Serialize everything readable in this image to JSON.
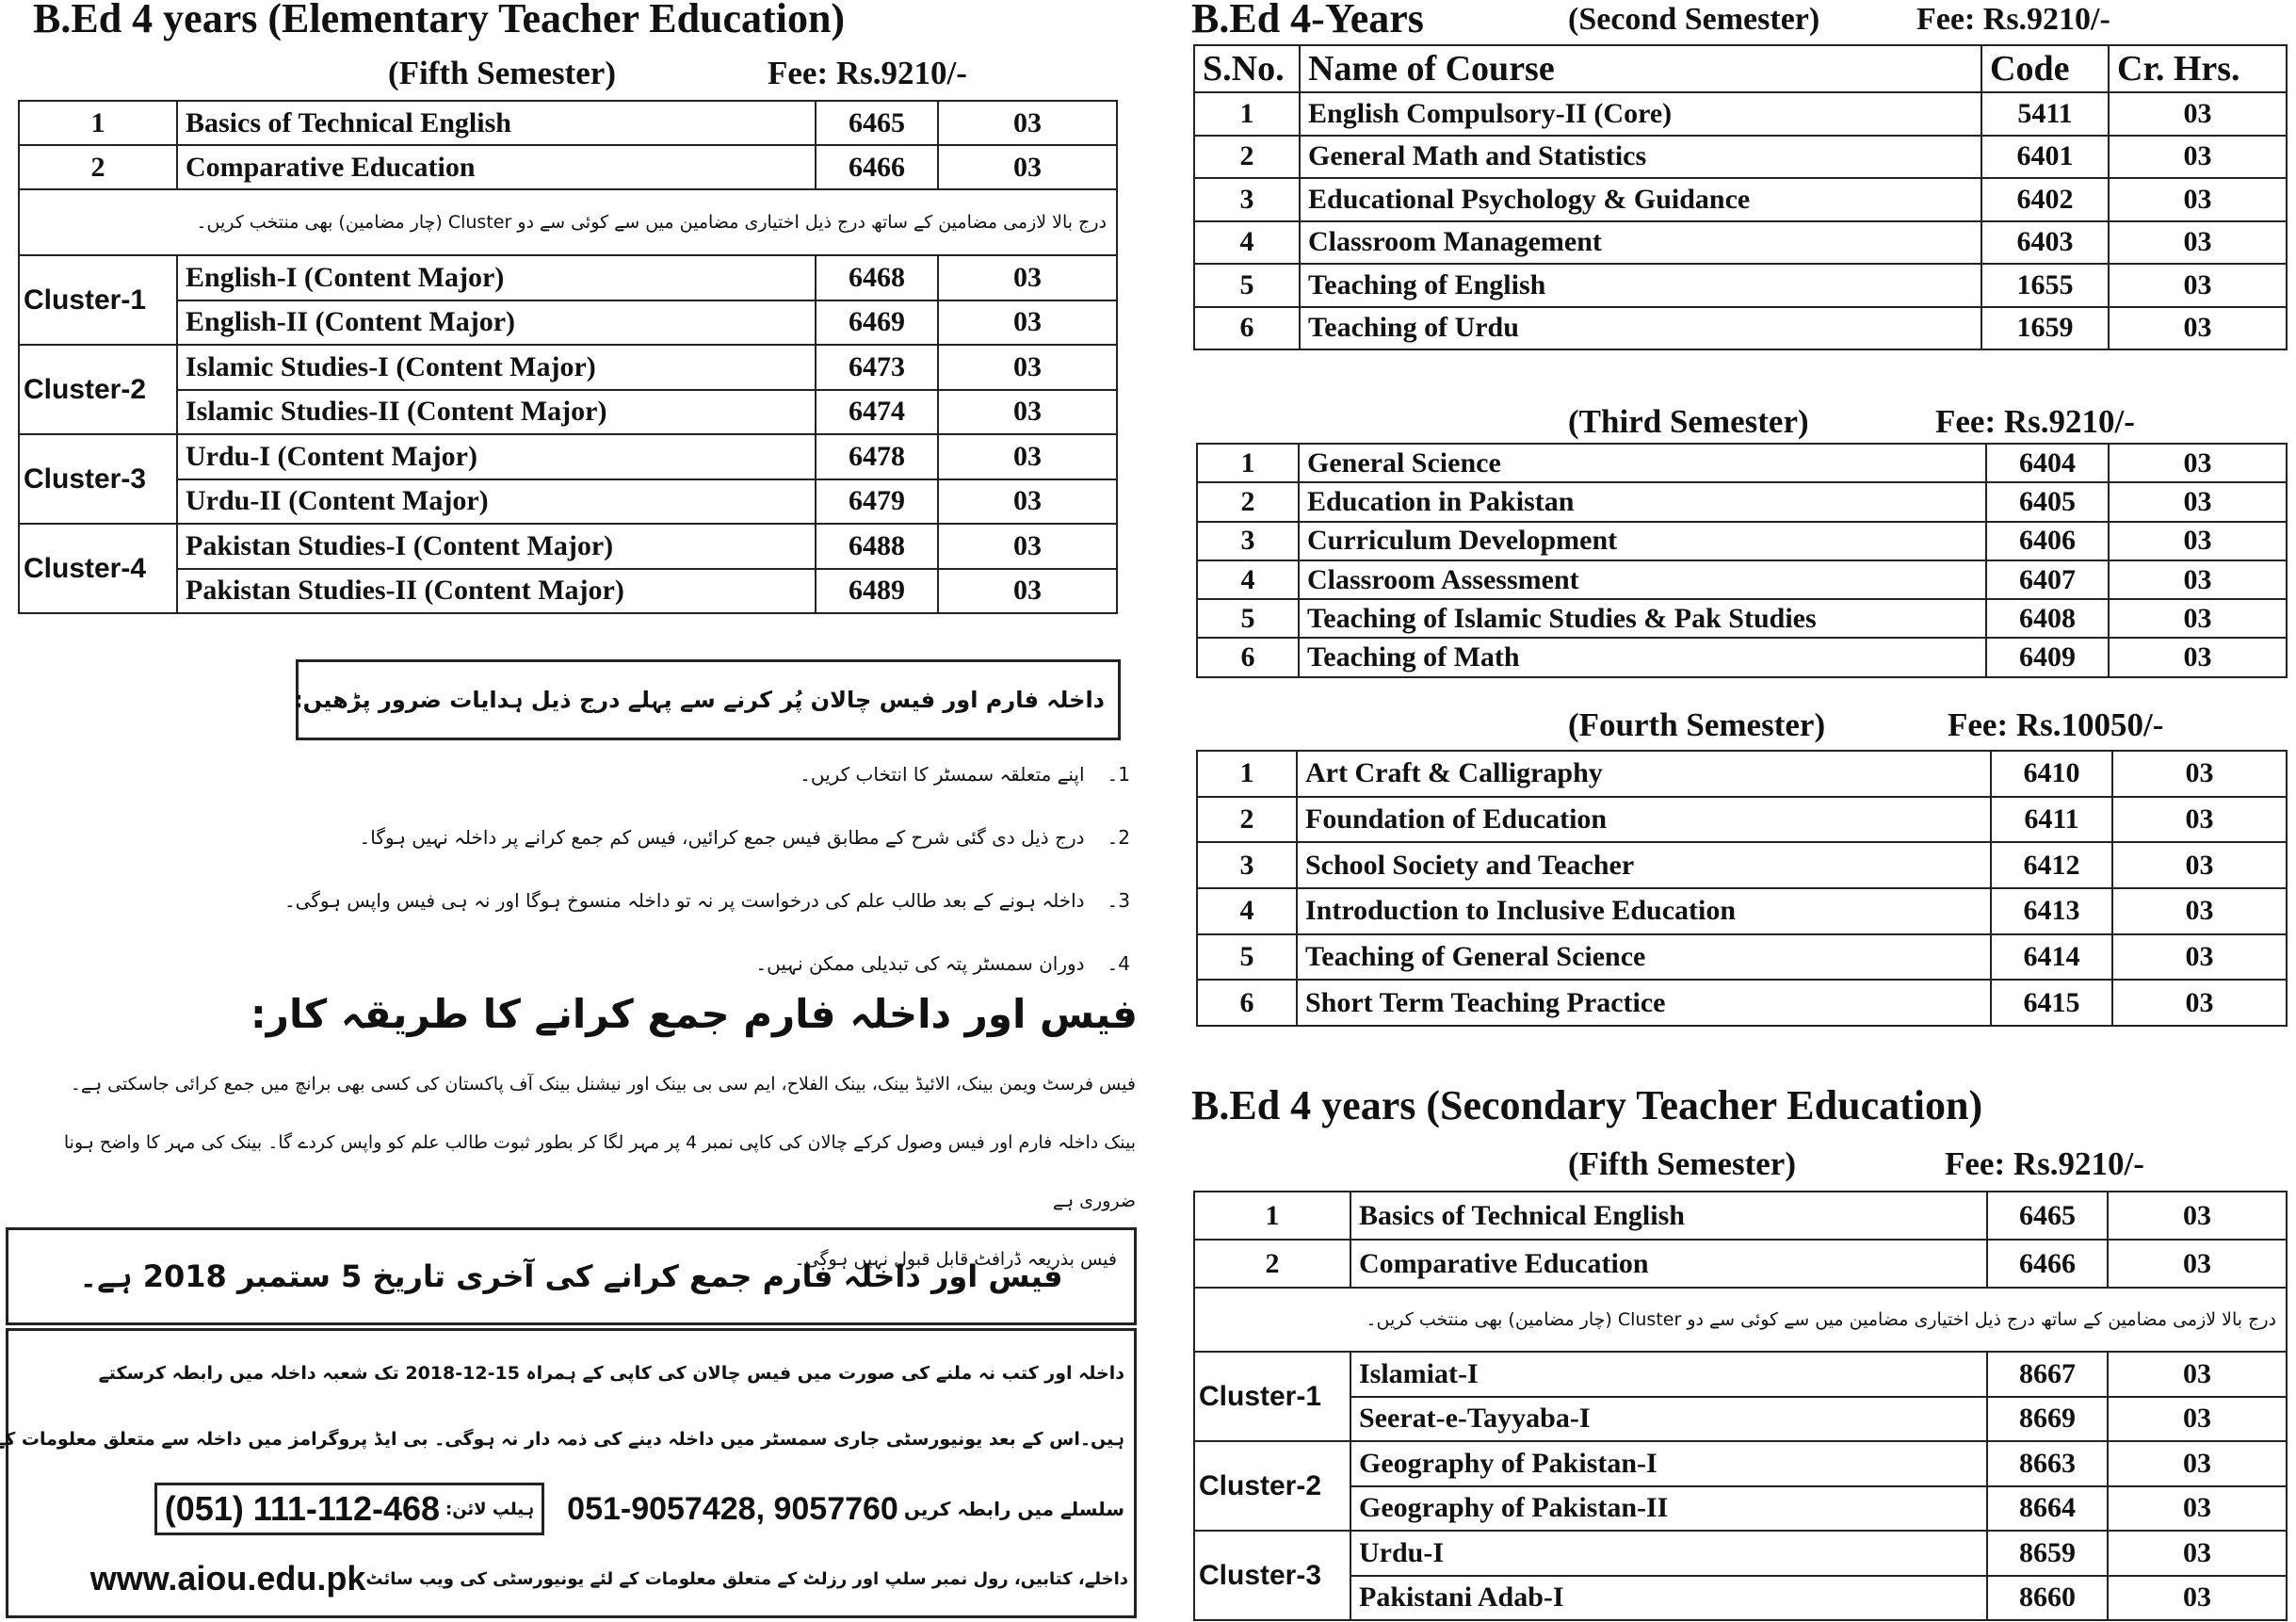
{
  "left": {
    "title": "B.Ed 4 years (Elementary Teacher Education)",
    "semester": "(Fifth Semester)",
    "fee": "Fee: Rs.9210/-",
    "compulsory": [
      [
        "1",
        "Basics of Technical English",
        "6465",
        "03"
      ],
      [
        "2",
        "Comparative Education",
        "6466",
        "03"
      ]
    ],
    "cluster_note": "درج بالا لازمی مضامین کے ساتھ درج ذیل اختیاری مضامین میں سے کوئی سے دو Cluster (چار مضامین) بھی منتخب کریں۔",
    "clusters": [
      {
        "name": "Cluster-1",
        "courses": [
          [
            "English-I (Content Major)",
            "6468",
            "03"
          ],
          [
            "English-II (Content Major)",
            "6469",
            "03"
          ]
        ]
      },
      {
        "name": "Cluster-2",
        "courses": [
          [
            "Islamic Studies-I (Content Major)",
            "6473",
            "03"
          ],
          [
            "Islamic Studies-II (Content Major)",
            "6474",
            "03"
          ]
        ]
      },
      {
        "name": "Cluster-3",
        "courses": [
          [
            "Urdu-I (Content Major)",
            "6478",
            "03"
          ],
          [
            "Urdu-II (Content Major)",
            "6479",
            "03"
          ]
        ]
      },
      {
        "name": "Cluster-4",
        "courses": [
          [
            "Pakistan Studies-I (Content Major)",
            "6488",
            "03"
          ],
          [
            "Pakistan Studies-II (Content Major)",
            "6489",
            "03"
          ]
        ]
      }
    ],
    "instructions_title": "داخلہ فارم اور فیس چالان پُر کرنے سے پہلے درج ذیل ہدایات ضرور پڑھیں:",
    "instructions": [
      {
        "num": "1۔",
        "text": "اپنے متعلقہ سمسٹر کا انتخاب کریں۔"
      },
      {
        "num": "2۔",
        "text": "درج ذیل دی گئی شرح کے مطابق فیس جمع کرائیں، فیس کم جمع کرانے پر داخلہ نہیں ہوگا۔"
      },
      {
        "num": "3۔",
        "text": "داخلہ ہونے کے بعد طالب علم کی درخواست پر نہ تو داخلہ منسوخ ہوگا اور نہ ہی فیس واپس ہوگی۔"
      },
      {
        "num": "4۔",
        "text": "دوران سمسٹر پتہ کی تبدیلی ممکن نہیں۔"
      }
    ],
    "method_title": "فیس اور داخلہ فارم جمع کرانے کا طریقہ کار:",
    "method_lines": [
      "فیس فرسٹ ویمن بینک، الائیڈ بینک، بینک الفلاح، ایم سی بی بینک اور نیشنل بینک آف پاکستان کی کسی بھی برانچ میں جمع کرائی جاسکتی ہے۔",
      "بینک داخلہ فارم اور فیس وصول کرکے چالان کی کاپی نمبر 4 پر مہر لگا کر بطور ثبوت طالب علم کو واپس کردے گا۔ بینک کی مہر کا واضح ہونا ضروری ہے",
      "فیس بذریعہ ڈرافٹ قابل قبول نہیں ہوگی۔"
    ],
    "deadline": "فیس اور داخلہ فارم جمع کرانے کی آخری تاریخ 5 ستمبر 2018 ہے۔",
    "contact": {
      "line1": "داخلہ اور کتب نہ ملنے کی صورت میں فیس چالان کی کاپی کے ہمراہ 15-12-2018 تک شعبہ داخلہ میں رابطہ کرسکتے",
      "line2": "ہیں۔اس کے بعد یونیورسٹی جاری سمسٹر میں داخلہ دینے کی ذمہ دار نہ ہوگی۔ بی ایڈ پروگرامز میں داخلہ سے متعلق معلومات کے",
      "line3": "سلسلے میں رابطہ کریں",
      "phones": "051-9057428,  9057760",
      "helpline_label": "ہیلپ لائن:",
      "helpline": "(051) 111-112-468",
      "line4": "داخلے، کتابیں، رول نمبر سلپ اور رزلٹ کے متعلق معلومات کے لئے یونیورسٹی کی ویب سائٹ",
      "website": "www.aiou.edu.pk"
    }
  },
  "right": {
    "second": {
      "title": "B.Ed  4-Years",
      "semester": "(Second Semester)",
      "fee": "Fee: Rs.9210/-",
      "headers": [
        "S.No.",
        "Name of Course",
        "Code",
        "Cr. Hrs."
      ],
      "rows": [
        [
          "1",
          "English Compulsory-II (Core)",
          "5411",
          "03"
        ],
        [
          "2",
          "General Math and Statistics",
          "6401",
          "03"
        ],
        [
          "3",
          "Educational Psychology & Guidance",
          "6402",
          "03"
        ],
        [
          "4",
          "Classroom Management",
          "6403",
          "03"
        ],
        [
          "5",
          "Teaching of English",
          "1655",
          "03"
        ],
        [
          "6",
          "Teaching of Urdu",
          "1659",
          "03"
        ]
      ]
    },
    "third": {
      "semester": "(Third Semester)",
      "fee": "Fee: Rs.9210/-",
      "rows": [
        [
          "1",
          "General Science",
          "6404",
          "03"
        ],
        [
          "2",
          "Education in Pakistan",
          "6405",
          "03"
        ],
        [
          "3",
          "Curriculum Development",
          "6406",
          "03"
        ],
        [
          "4",
          "Classroom Assessment",
          "6407",
          "03"
        ],
        [
          "5",
          "Teaching of Islamic Studies & Pak Studies",
          "6408",
          "03"
        ],
        [
          "6",
          "Teaching of Math",
          "6409",
          "03"
        ]
      ]
    },
    "fourth": {
      "semester": "(Fourth Semester)",
      "fee": "Fee: Rs.10050/-",
      "rows": [
        [
          "1",
          "Art Craft & Calligraphy",
          "6410",
          "03"
        ],
        [
          "2",
          "Foundation of Education",
          "6411",
          "03"
        ],
        [
          "3",
          "School Society and Teacher",
          "6412",
          "03"
        ],
        [
          "4",
          "Introduction to Inclusive Education",
          "6413",
          "03"
        ],
        [
          "5",
          "Teaching of General Science",
          "6414",
          "03"
        ],
        [
          "6",
          "Short Term Teaching Practice",
          "6415",
          "03"
        ]
      ]
    },
    "secondary": {
      "title": "B.Ed 4 years (Secondary Teacher Education)",
      "semester": "(Fifth Semester)",
      "fee": "Fee: Rs.9210/-",
      "compulsory": [
        [
          "1",
          "Basics of Technical English",
          "6465",
          "03"
        ],
        [
          "2",
          "Comparative Education",
          "6466",
          "03"
        ]
      ],
      "cluster_note": "درج بالا لازمی مضامین کے ساتھ درج ذیل اختیاری مضامین میں سے کوئی سے دو Cluster (چار مضامین) بھی منتخب کریں۔",
      "clusters": [
        {
          "name": "Cluster-1",
          "courses": [
            [
              "Islamiat-I",
              "8667",
              "03"
            ],
            [
              "Seerat-e-Tayyaba-I",
              "8669",
              "03"
            ]
          ]
        },
        {
          "name": "Cluster-2",
          "courses": [
            [
              "Geography of Pakistan-I",
              "8663",
              "03"
            ],
            [
              "Geography of Pakistan-II",
              "8664",
              "03"
            ]
          ]
        },
        {
          "name": "Cluster-3",
          "courses": [
            [
              "Urdu-I",
              "8659",
              "03"
            ],
            [
              "Pakistani Adab-I",
              "8660",
              "03"
            ]
          ]
        }
      ]
    }
  }
}
